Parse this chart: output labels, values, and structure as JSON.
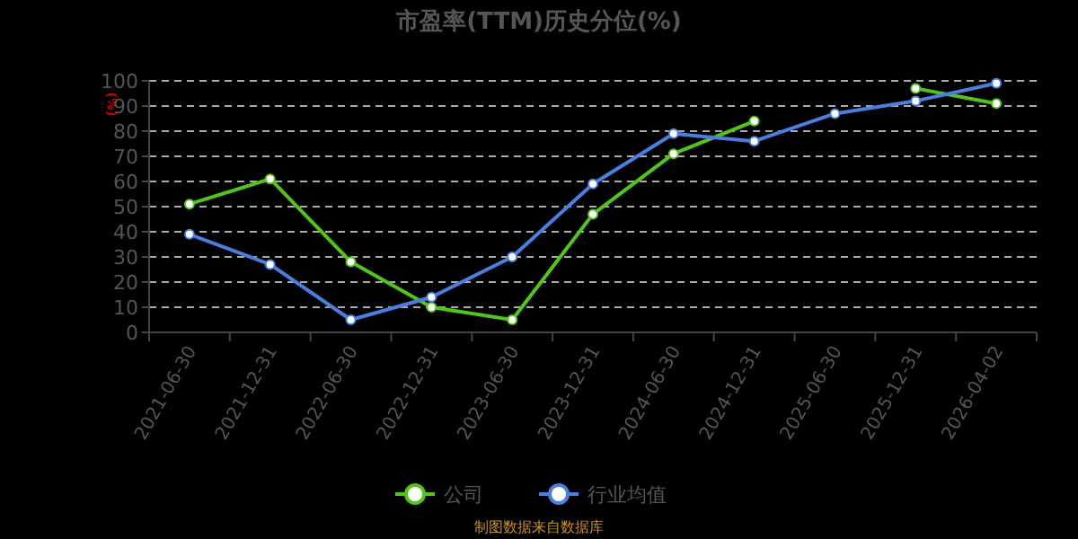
{
  "chart_data": {
    "type": "line",
    "title": "市盈率(TTM)历史分位(%)",
    "ylabel": "(%)",
    "categories": [
      "2021-06-30",
      "2021-12-31",
      "2022-06-30",
      "2022-12-31",
      "2023-06-30",
      "2023-12-31",
      "2024-06-30",
      "2024-12-31",
      "2025-06-30",
      "2025-12-31",
      "2026-04-02"
    ],
    "series": [
      {
        "name": "公司",
        "color": "#52c41a",
        "values": [
          51,
          61,
          28,
          10,
          5,
          47,
          71,
          84,
          null,
          97,
          91
        ]
      },
      {
        "name": "行业均值",
        "color": "#4a7fe0",
        "values": [
          39,
          27,
          5,
          14,
          30,
          59,
          79,
          76,
          87,
          92,
          99
        ]
      }
    ],
    "ylim": [
      0,
      100
    ],
    "yticks": [
      0,
      10,
      20,
      30,
      40,
      50,
      60,
      70,
      80,
      90,
      100
    ],
    "grid": "y",
    "legend": "bottom",
    "marker": "circle",
    "line_style": "solid",
    "annotations": [
      "制图数据来自数据库"
    ]
  }
}
